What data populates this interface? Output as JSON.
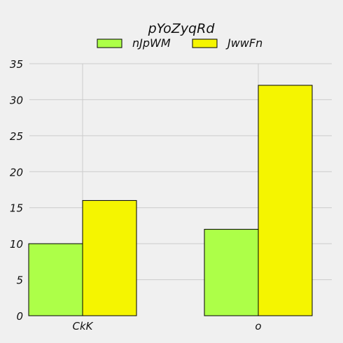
{
  "chart_data": {
    "type": "bar",
    "title": "pYoZyqRd",
    "xlabel": "",
    "ylabel": "",
    "categories": [
      "CkK",
      "o"
    ],
    "series": [
      {
        "name": "nJpWM",
        "values": [
          10,
          12
        ],
        "color": "#adff48"
      },
      {
        "name": "JwwFn",
        "values": [
          16,
          32
        ],
        "color": "#f5f500"
      }
    ],
    "ylim": [
      0,
      35
    ],
    "yticks": [
      0,
      5,
      10,
      15,
      20,
      25,
      30,
      35
    ],
    "grid": true,
    "legend_position": "top-center"
  }
}
